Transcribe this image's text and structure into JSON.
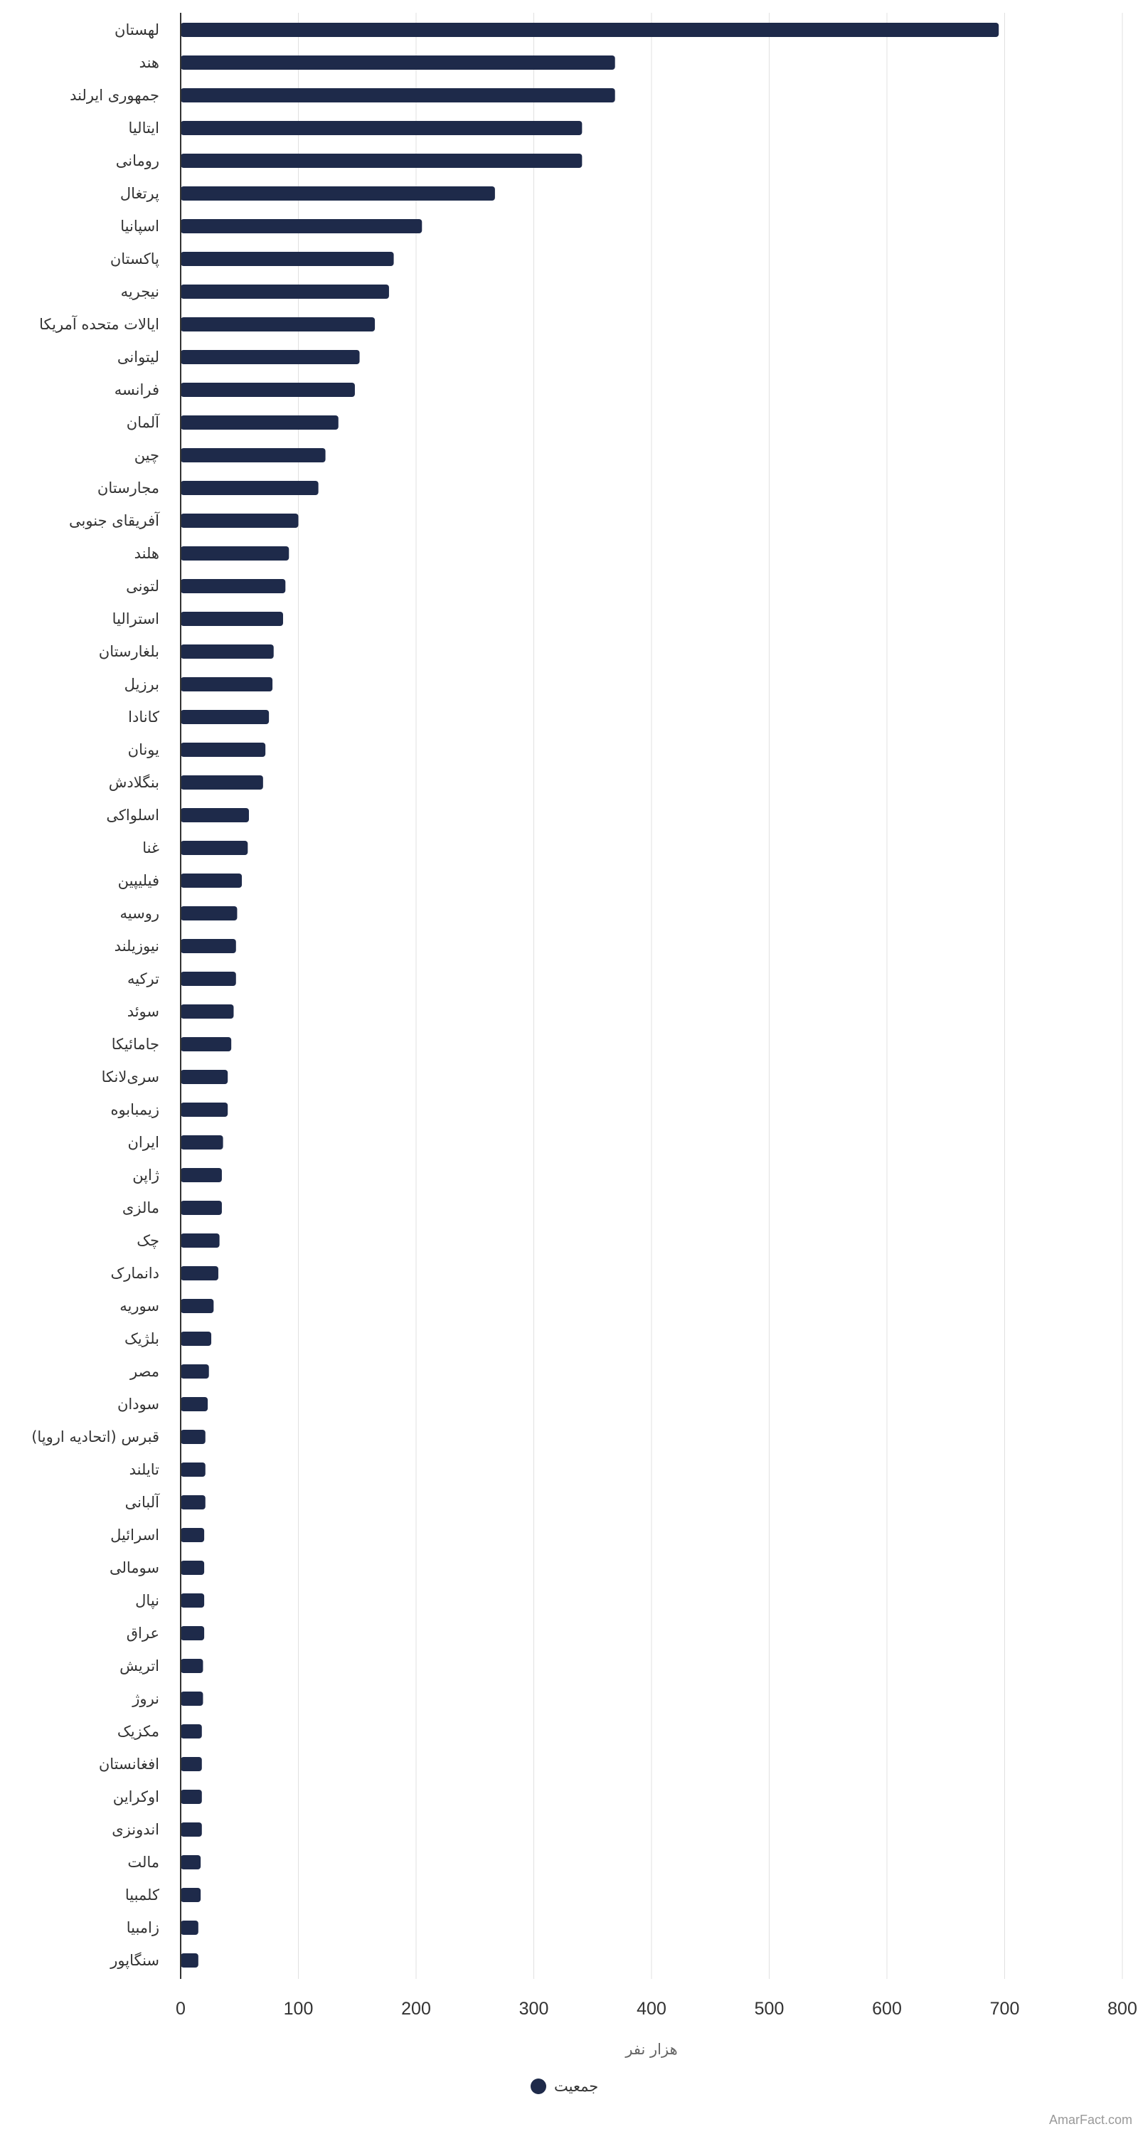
{
  "chart_data": {
    "type": "bar",
    "orientation": "horizontal",
    "title": "",
    "xlabel": "هزار نفر",
    "ylabel": "",
    "xlim": [
      0,
      800
    ],
    "xticks": [
      0,
      100,
      200,
      300,
      400,
      500,
      600,
      700,
      800
    ],
    "grid": true,
    "legend_position": "bottom",
    "categories": [
      "لهستان",
      "هند",
      "جمهوری ایرلند",
      "ایتالیا",
      "رومانی",
      "پرتغال",
      "اسپانیا",
      "پاکستان",
      "نیجریه",
      "ایالات متحده آمریکا",
      "لیتوانی",
      "فرانسه",
      "آلمان",
      "چین",
      "مجارستان",
      "آفریقای جنوبی",
      "هلند",
      "لتونی",
      "استرالیا",
      "بلغارستان",
      "برزیل",
      "کانادا",
      "یونان",
      "بنگلادش",
      "اسلواکی",
      "غنا",
      "فیلیپین",
      "روسیه",
      "نیوزیلند",
      "ترکیه",
      "سوئد",
      "جامائیکا",
      "سری‌لانکا",
      "زیمبابوه",
      "ایران",
      "ژاپن",
      "مالزی",
      "چک",
      "دانمارک",
      "سوریه",
      "بلژیک",
      "مصر",
      "سودان",
      "قبرس (اتحادیه اروپا)",
      "تایلند",
      "آلبانی",
      "اسرائیل",
      "سومالی",
      "نپال",
      "عراق",
      "اتریش",
      "نروژ",
      "مکزیک",
      "افغانستان",
      "اوکراین",
      "اندونزی",
      "مالت",
      "کلمبیا",
      "زامبیا",
      "سنگاپور"
    ],
    "series": [
      {
        "name": "جمعیت",
        "color": "#1e2a4a",
        "values": [
          695,
          369,
          369,
          341,
          341,
          267,
          205,
          181,
          177,
          165,
          152,
          148,
          134,
          123,
          117,
          100,
          92,
          89,
          87,
          79,
          78,
          75,
          72,
          70,
          58,
          57,
          52,
          48,
          47,
          47,
          45,
          43,
          40,
          40,
          36,
          35,
          35,
          33,
          32,
          28,
          26,
          24,
          23,
          21,
          21,
          21,
          20,
          20,
          20,
          20,
          19,
          19,
          18,
          18,
          18,
          18,
          17,
          17,
          15,
          15
        ]
      }
    ]
  },
  "legend": {
    "label": "جمعیت"
  },
  "credit": "AmarFact.com",
  "colors": {
    "bar": "#1e2a4a",
    "grid": "#e0e0e0",
    "axis": "#333333"
  }
}
